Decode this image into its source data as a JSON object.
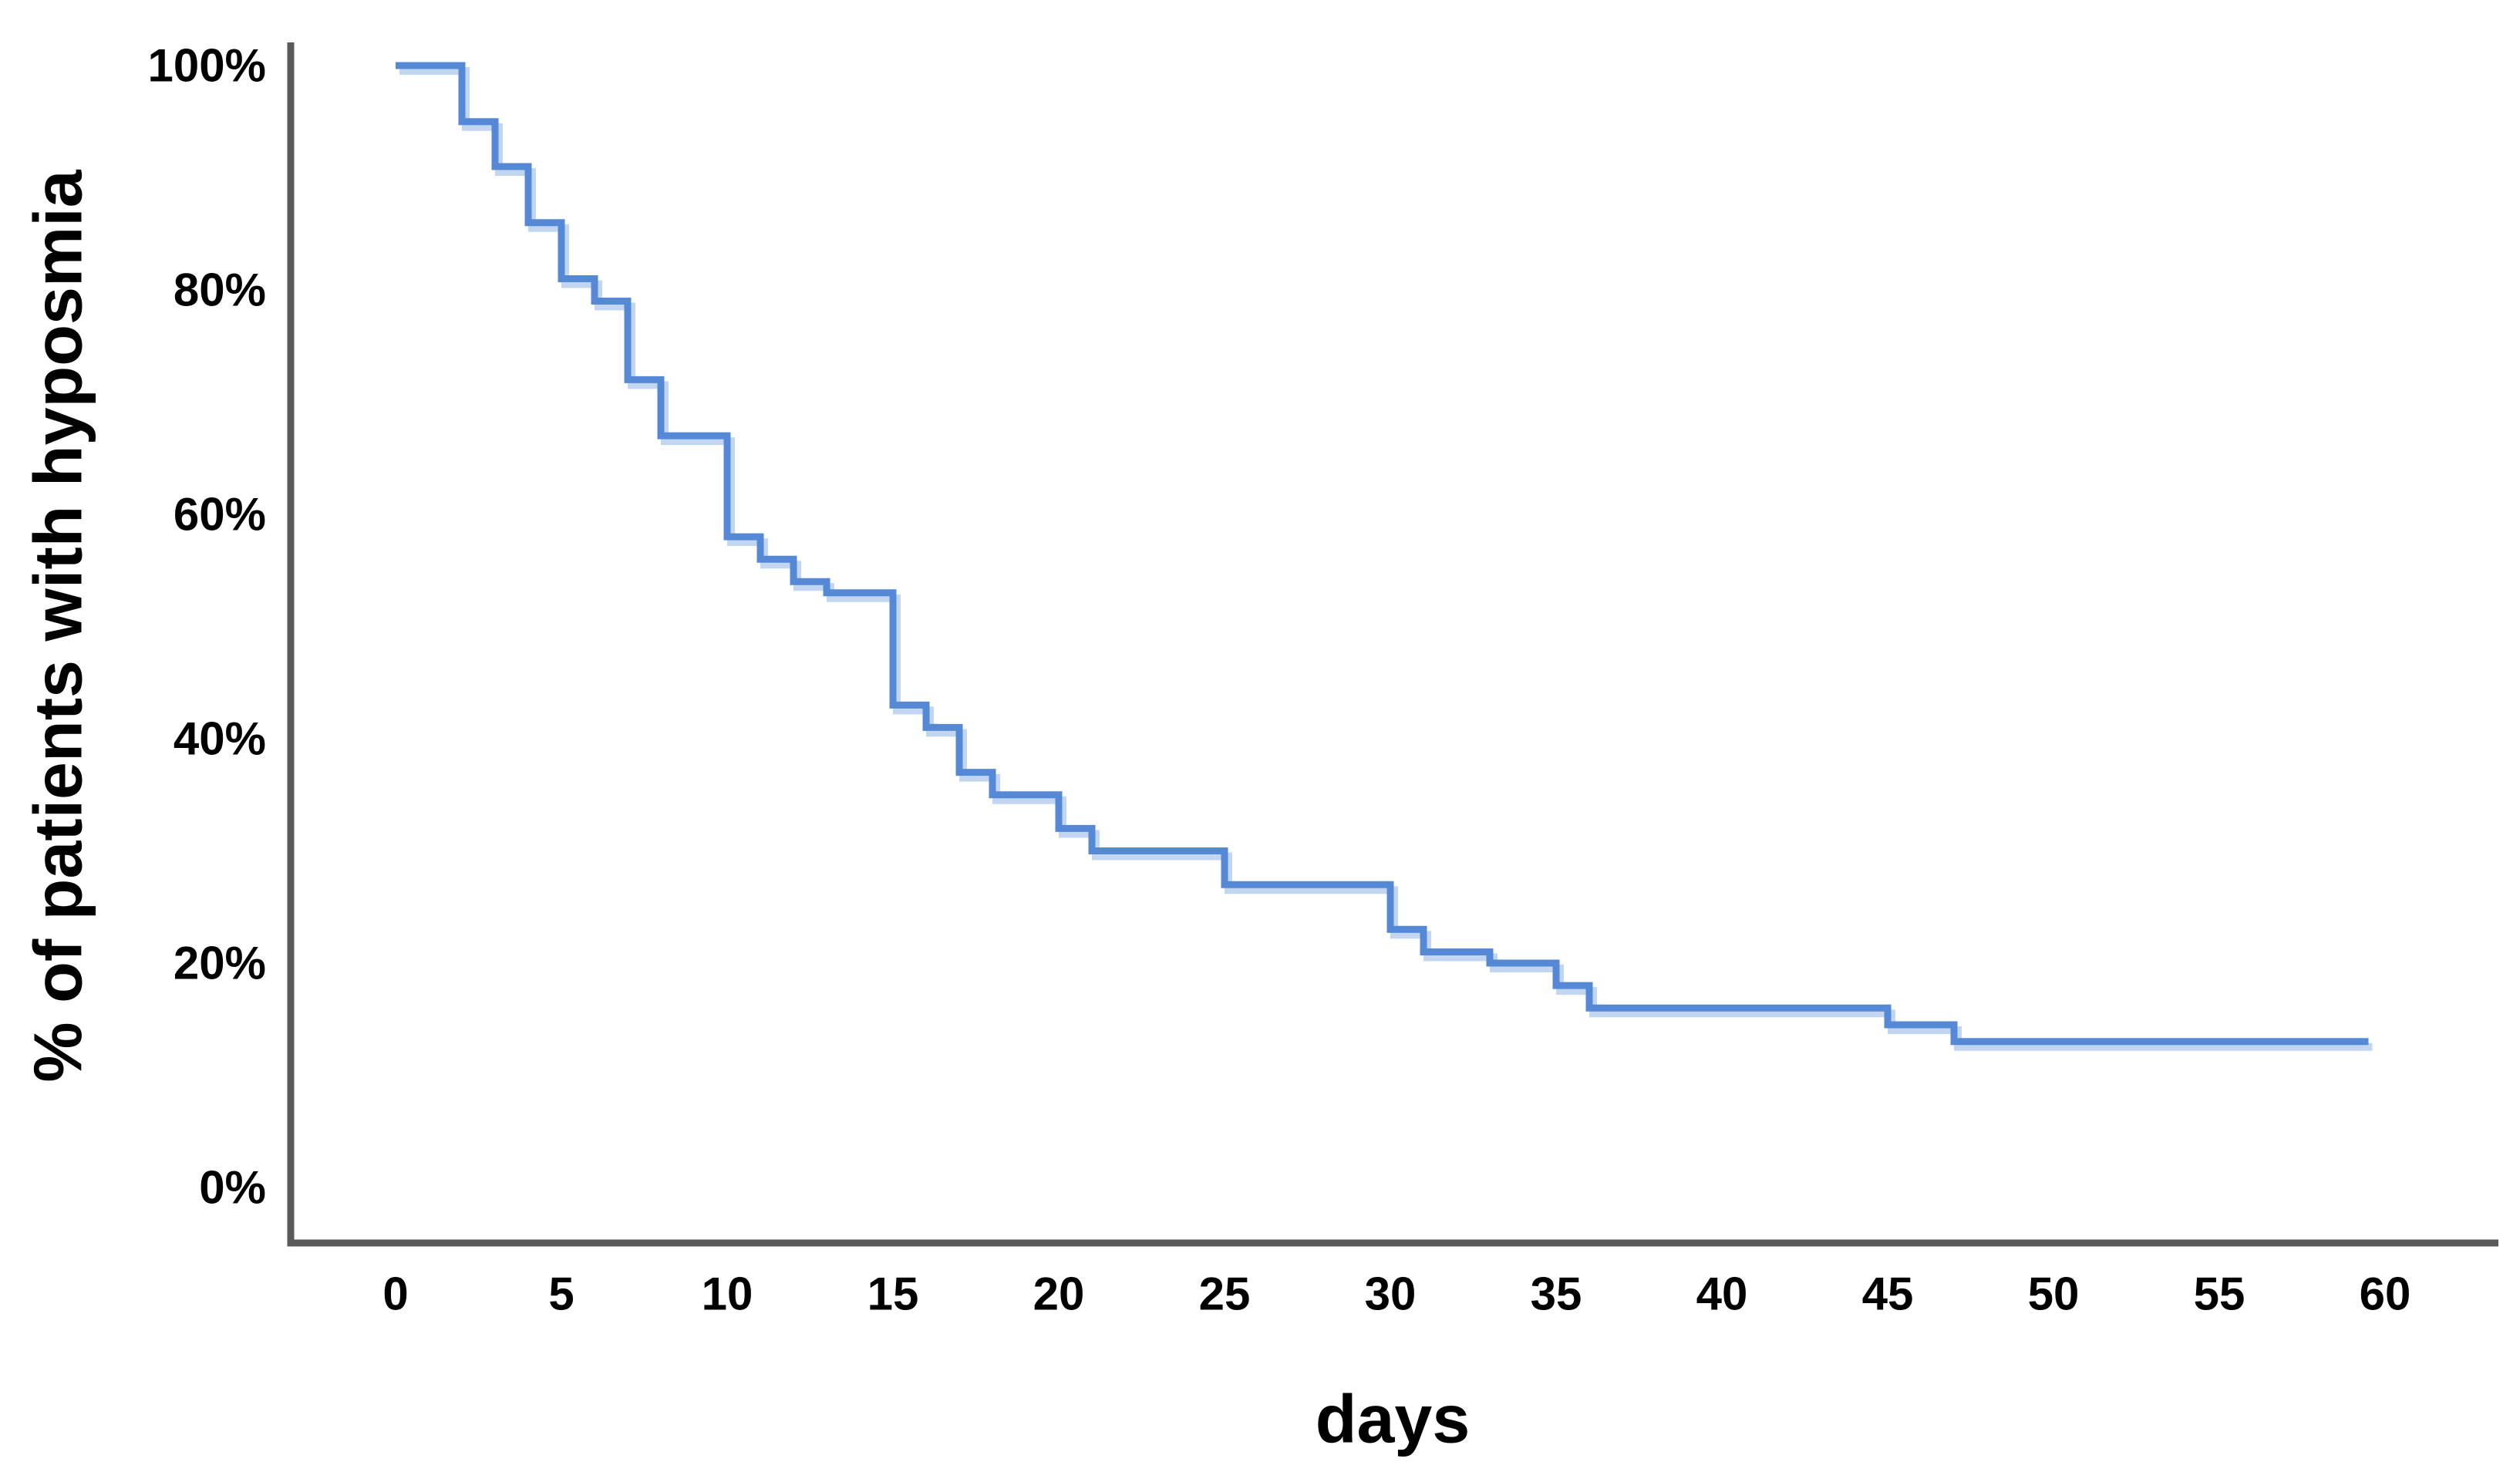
{
  "chart_data": {
    "type": "line",
    "subtype": "kaplan-meier-step",
    "title": "",
    "xlabel": "days",
    "ylabel": "% of patients with hyposmia",
    "x_ticks": [
      0,
      5,
      10,
      15,
      20,
      25,
      30,
      35,
      40,
      45,
      50,
      55,
      60
    ],
    "y_tick_labels": [
      "0%",
      "20%",
      "40%",
      "60%",
      "80%",
      "100%"
    ],
    "y_tick_values": [
      0,
      20,
      40,
      60,
      80,
      100
    ],
    "xlim": [
      0,
      60
    ],
    "ylim": [
      0,
      100
    ],
    "grid": false,
    "legend": "none",
    "series": [
      {
        "name": "patients with hyposmia",
        "step_days": [
          0,
          2,
          3,
          4,
          5,
          6,
          7,
          8,
          10,
          11,
          12,
          13,
          15,
          16,
          17,
          18,
          20,
          21,
          25,
          30,
          31,
          33,
          35,
          36,
          45,
          47
        ],
        "step_percents": [
          100,
          95,
          91,
          86,
          81,
          79,
          72,
          67,
          58,
          56,
          54,
          53,
          43,
          41,
          37,
          35,
          32,
          30,
          27,
          23,
          21,
          20,
          18,
          16,
          14.5,
          13
        ],
        "end_day": 59.5,
        "color": "#5588d5",
        "halo_color": "#c2d6f2"
      }
    ],
    "axis_color": "#5a5a5a",
    "text_color": "#000000"
  }
}
